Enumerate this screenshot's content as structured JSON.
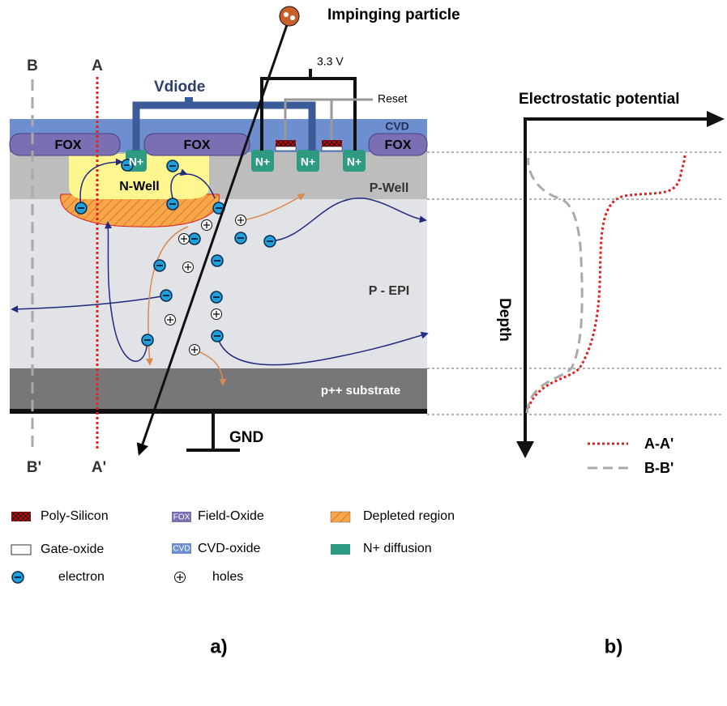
{
  "particle": {
    "label": "Impinging particle"
  },
  "supply": "3.3 V",
  "reset": "Reset",
  "vdiode": "Vdiode",
  "gnd": "GND",
  "cuts": {
    "a": "A",
    "a_prime": "A'",
    "b": "B",
    "b_prime": "B'"
  },
  "regions": {
    "fox": [
      "FOX",
      "FOX",
      "FOX"
    ],
    "cvd": "CVD",
    "n_plus": [
      "N+",
      "N+",
      "N+",
      "N+"
    ],
    "n_well": "N-Well",
    "p_well": "P-Well",
    "p_epi": "P - EPI",
    "substrate": "p++ substrate"
  },
  "potential_plot": {
    "x_label": "Electrostatic potential",
    "y_label": "Depth",
    "legend": [
      "A-A'",
      "B-B'"
    ]
  },
  "legend": [
    {
      "label": "Poly-Silicon"
    },
    {
      "label": "Field-Oxide",
      "icon_text": "FOX"
    },
    {
      "label": "Depleted region"
    },
    {
      "label": "Gate-oxide"
    },
    {
      "label": "CVD-oxide",
      "icon_text": "CVD"
    },
    {
      "label": "N+ diffusion"
    },
    {
      "label": "electron"
    },
    {
      "label": "holes"
    }
  ],
  "panels": [
    "a)",
    "b)"
  ]
}
